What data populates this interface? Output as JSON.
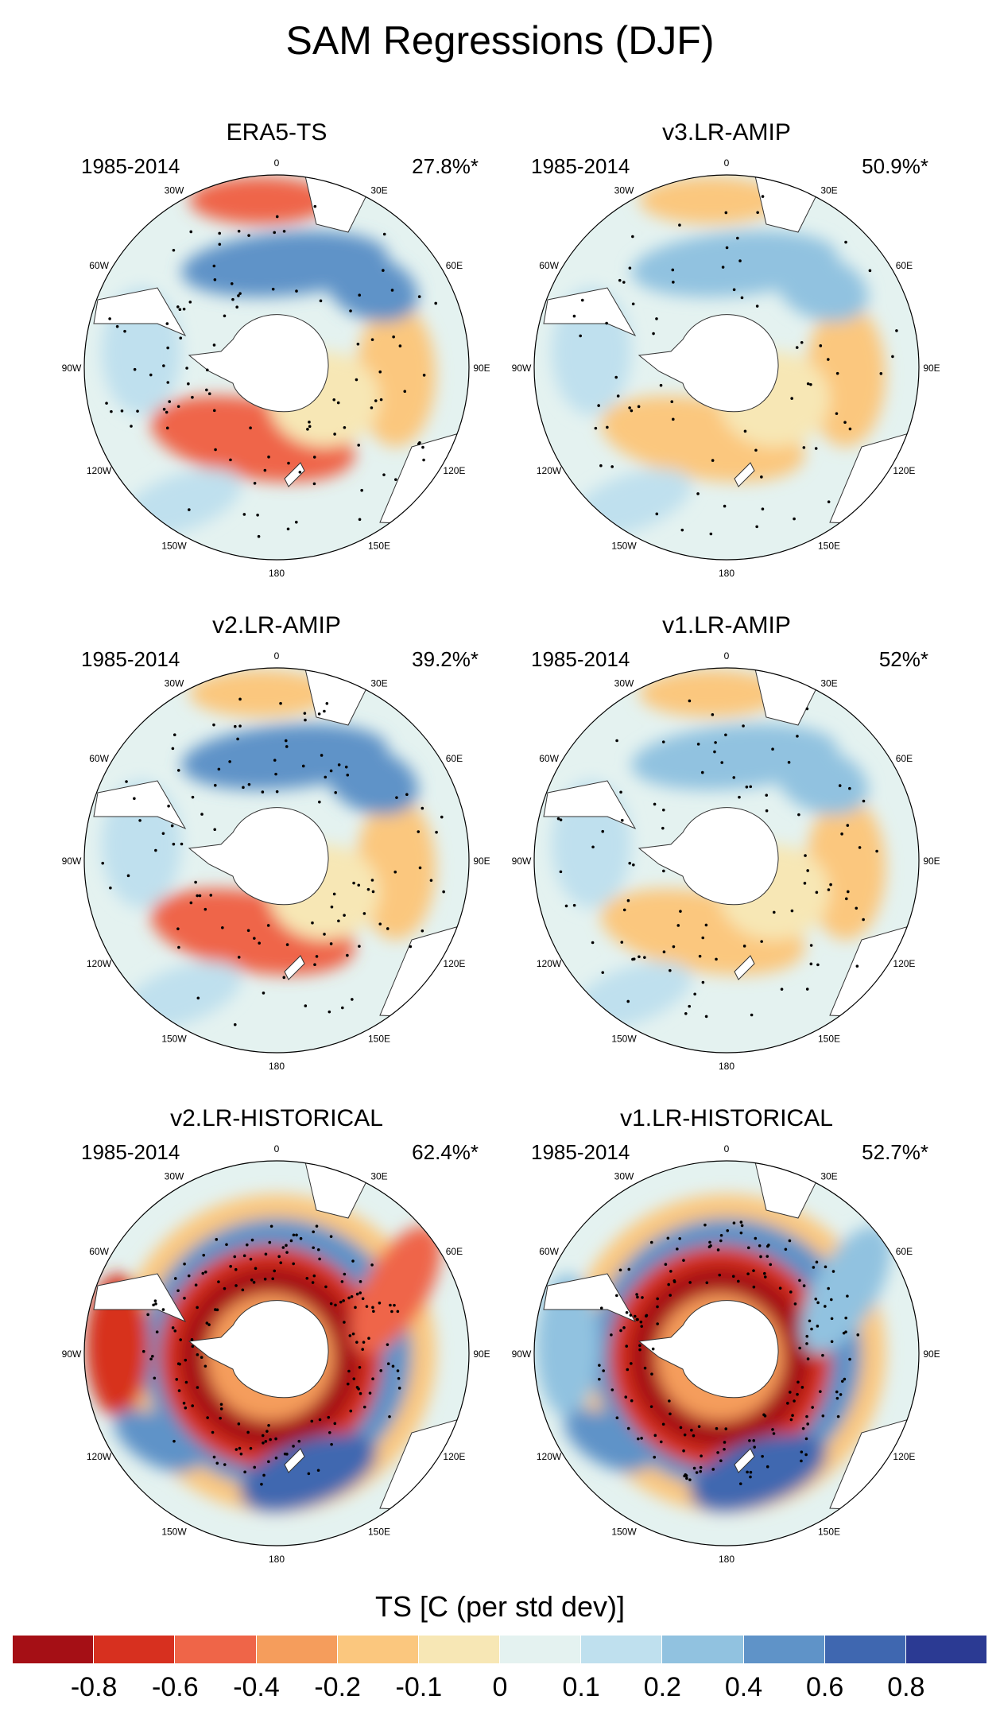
{
  "title": "SAM Regressions (DJF)",
  "panels": [
    {
      "title": "ERA5-TS",
      "years": "1985-2014",
      "percent": "27.8%*",
      "intensity": 0.45
    },
    {
      "title": "v3.LR-AMIP",
      "years": "1985-2014",
      "percent": "50.9%*",
      "intensity": 0.2
    },
    {
      "title": "v2.LR-AMIP",
      "years": "1985-2014",
      "percent": "39.2%*",
      "intensity": 0.45
    },
    {
      "title": "v1.LR-AMIP",
      "years": "1985-2014",
      "percent": "52%*",
      "intensity": 0.35
    },
    {
      "title": "v2.LR-HISTORICAL",
      "years": "1985-2014",
      "percent": "62.4%*",
      "intensity": 0.95
    },
    {
      "title": "v1.LR-HISTORICAL",
      "years": "1985-2014",
      "percent": "52.7%*",
      "intensity": 1.0
    }
  ],
  "lon_labels": [
    "0",
    "30E",
    "60E",
    "90E",
    "120E",
    "150E",
    "180",
    "150W",
    "120W",
    "90W",
    "60W",
    "30W"
  ],
  "colorbar": {
    "title": "TS [C (per std dev)]",
    "colors": [
      "#a50f15",
      "#d7301f",
      "#ef6548",
      "#f59d5c",
      "#fbc77e",
      "#f7e7b5",
      "#e4f2f0",
      "#bfe0ee",
      "#91c2e0",
      "#5f93c8",
      "#3f67b0",
      "#2b3a93"
    ],
    "labels": [
      "-0.8",
      "-0.6",
      "-0.4",
      "-0.2",
      "-0.1",
      "0",
      "0.1",
      "0.2",
      "0.4",
      "0.6",
      "0.8"
    ]
  }
}
